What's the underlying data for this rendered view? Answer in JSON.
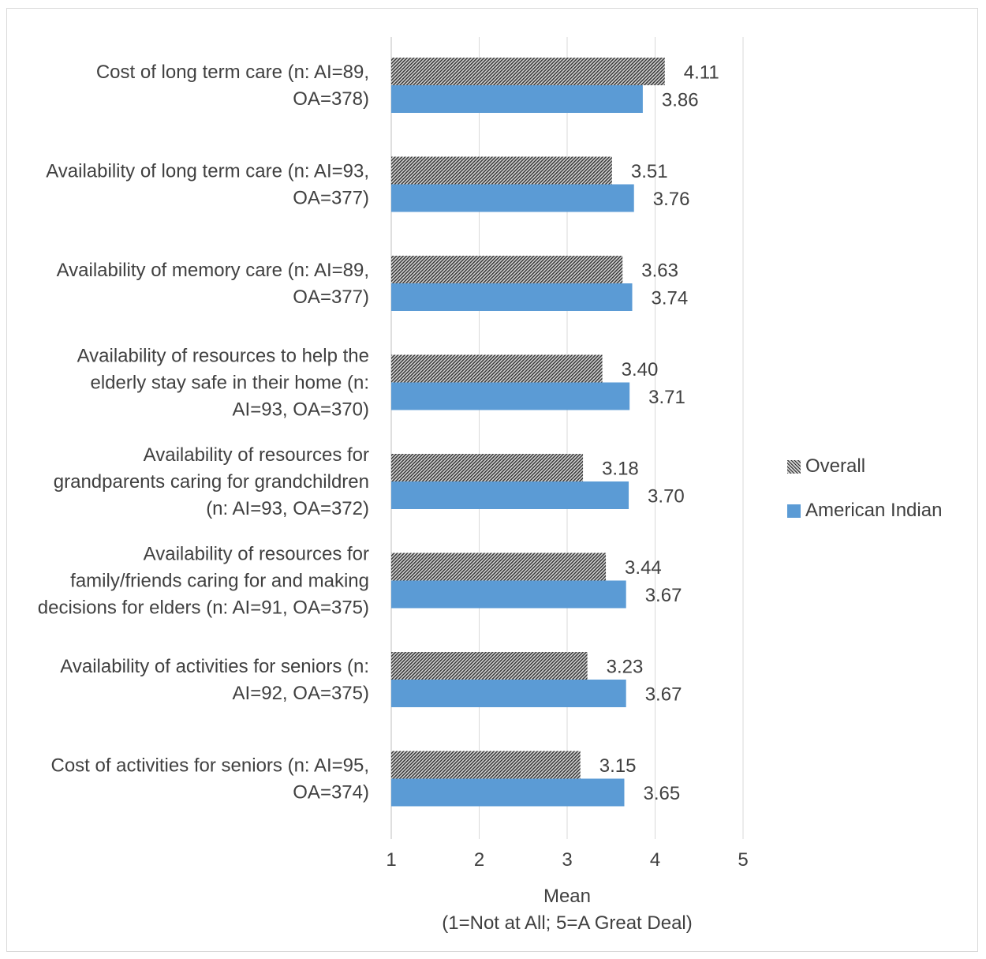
{
  "chart_data": {
    "type": "bar",
    "orientation": "horizontal",
    "title": "",
    "xlabel": "Mean",
    "xlabel_note": "(1=Not at All; 5=A Great Deal)",
    "ylabel": "",
    "xlim": [
      1,
      5
    ],
    "x_ticks": [
      "1",
      "2",
      "3",
      "4",
      "5"
    ],
    "grid": "vertical",
    "legend_position": "right",
    "categories": [
      [
        "Cost of long term care (n: AI=89,",
        "OA=378)"
      ],
      [
        "Availability of long term care (n: AI=93,",
        "OA=377)"
      ],
      [
        "Availability of memory care (n: AI=89,",
        "OA=377)"
      ],
      [
        "Availability of resources to help the",
        "elderly stay safe in their home (n:",
        "AI=93, OA=370)"
      ],
      [
        "Availability of resources for",
        "grandparents caring for grandchildren",
        "(n: AI=93, OA=372)"
      ],
      [
        "Availability of resources for",
        "family/friends caring for and making",
        "decisions for elders (n: AI=91, OA=375)"
      ],
      [
        "Availability of activities for seniors (n:",
        "AI=92, OA=375)"
      ],
      [
        "Cost of activities for seniors (n: AI=95,",
        "OA=374)"
      ]
    ],
    "series": [
      {
        "name": "Overall",
        "color": "#7f7f7f",
        "pattern": "dense-hatch",
        "values": [
          4.11,
          3.51,
          3.63,
          3.4,
          3.18,
          3.44,
          3.23,
          3.15
        ],
        "labels": [
          "4.11",
          "3.51",
          "3.63",
          "3.40",
          "3.18",
          "3.44",
          "3.23",
          "3.15"
        ]
      },
      {
        "name": "American Indian",
        "color": "#5b9bd5",
        "values": [
          3.86,
          3.76,
          3.74,
          3.71,
          3.7,
          3.67,
          3.67,
          3.65
        ],
        "labels": [
          "3.86",
          "3.76",
          "3.74",
          "3.71",
          "3.70",
          "3.67",
          "3.67",
          "3.65"
        ]
      }
    ]
  }
}
